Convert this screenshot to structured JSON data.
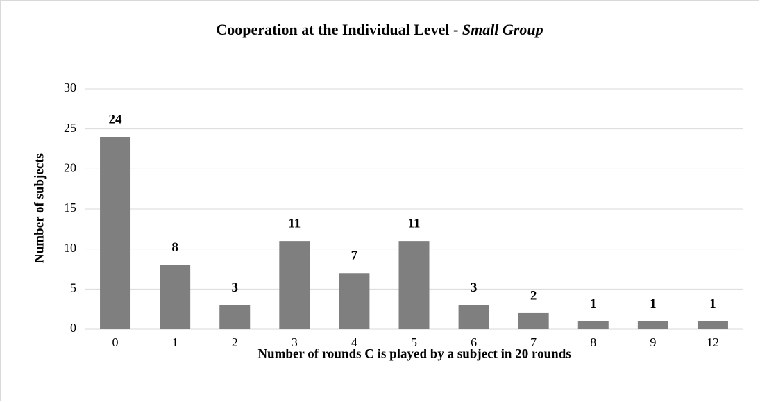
{
  "chart_data": {
    "type": "bar",
    "title": [
      "Cooperation at the Individual Level - ",
      "Small Group"
    ],
    "x_label": "Number of rounds C is played by a subject in 20 rounds",
    "y_label": "Number of subjects",
    "categories": [
      "0",
      "1",
      "2",
      "3",
      "4",
      "5",
      "6",
      "7",
      "8",
      "9",
      "12"
    ],
    "values": [
      24,
      8,
      3,
      11,
      7,
      11,
      3,
      2,
      1,
      1,
      1
    ],
    "color": "#7f7f7f",
    "ylim": [
      0,
      30
    ],
    "yticks": [
      0,
      5,
      10,
      15,
      20,
      25,
      30
    ],
    "grid": true
  }
}
